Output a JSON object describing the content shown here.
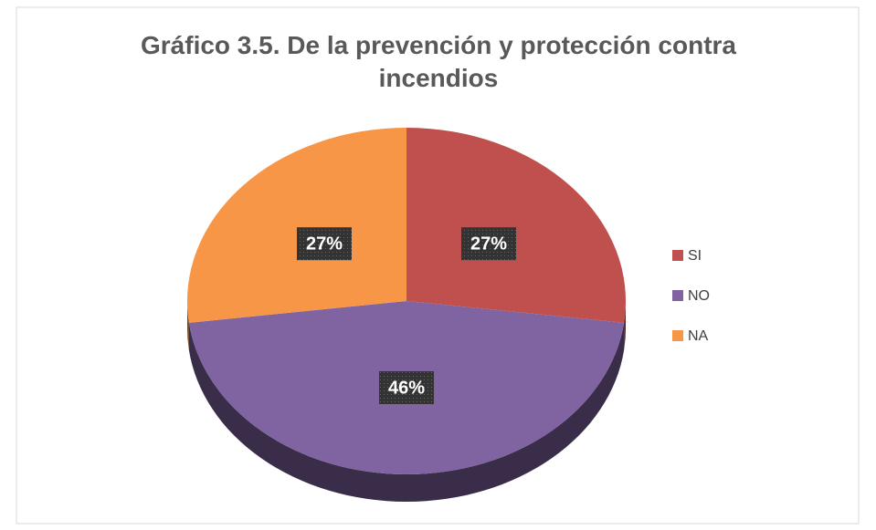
{
  "chart_data": {
    "type": "pie",
    "title": "Gráfico 3.5. De la prevención y protección contra incendios",
    "categories": [
      "SI",
      "NO",
      "NA"
    ],
    "values": [
      27,
      46,
      27
    ],
    "value_labels": [
      "27%",
      "46%",
      "27%"
    ],
    "colors": [
      "#c0504d",
      "#8064a2",
      "#f79646"
    ],
    "legend": "right"
  }
}
